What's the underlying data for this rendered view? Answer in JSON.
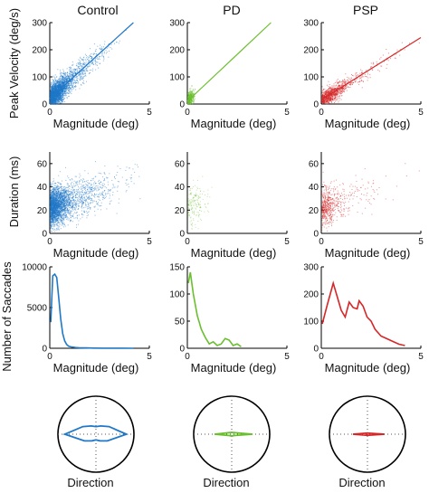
{
  "chart_data": {
    "type": "figure-grid",
    "columns": [
      {
        "title": "Control",
        "color": "#1f78c8"
      },
      {
        "title": "PD",
        "color": "#6abf2e"
      },
      {
        "title": "PSP",
        "color": "#d62728"
      }
    ],
    "rows": [
      {
        "id": "velocity",
        "type": "scatter",
        "ylabel": "Peak Velocity (deg/s)",
        "xlabel": "Magnitude (deg)",
        "xlim": [
          0,
          5
        ],
        "ylim": [
          0,
          300
        ],
        "x_ticks": [
          "0",
          "5"
        ],
        "y_ticks": [
          "0",
          "100",
          "200",
          "300"
        ],
        "x_tick_values": [
          0,
          5
        ],
        "y_tick_values": [
          0,
          100,
          200,
          300
        ],
        "fit_lines": [
          {
            "x": [
              0,
              4.2
            ],
            "y": [
              20,
              300
            ]
          },
          {
            "x": [
              0,
              4.2
            ],
            "y": [
              10,
              300
            ]
          },
          {
            "x": [
              0,
              5
            ],
            "y": [
              15,
              245
            ]
          }
        ]
      },
      {
        "id": "duration",
        "type": "scatter",
        "ylabel": "Duration (ms)",
        "xlabel": "Magnitude (deg)",
        "xlim": [
          0,
          5
        ],
        "ylim": [
          0,
          70
        ],
        "x_ticks": [
          "0",
          "5"
        ],
        "y_ticks": [
          "0",
          "20",
          "40",
          "60"
        ],
        "x_tick_values": [
          0,
          5
        ],
        "y_tick_values": [
          0,
          20,
          40,
          60
        ]
      },
      {
        "id": "count",
        "type": "line",
        "ylabel": "Number of Saccades",
        "xlabel": "Magnitude (deg)",
        "xlim": [
          0,
          5
        ],
        "x_ticks": [
          "0",
          "5"
        ],
        "x_tick_values": [
          0,
          5
        ],
        "panels": [
          {
            "ylim": [
              0,
              10000
            ],
            "y_ticks": [
              "0",
              "5000",
              "10000"
            ],
            "y_tick_values": [
              0,
              5000,
              10000
            ],
            "x": [
              0.05,
              0.15,
              0.25,
              0.35,
              0.45,
              0.55,
              0.65,
              0.75,
              0.85,
              0.95,
              1.1,
              1.3,
              1.5,
              1.8,
              2.2,
              2.7,
              3.2,
              3.7,
              4.2
            ],
            "y": [
              3200,
              8900,
              9100,
              8700,
              6200,
              3600,
              1800,
              900,
              450,
              250,
              150,
              90,
              60,
              40,
              25,
              15,
              10,
              8,
              5
            ]
          },
          {
            "ylim": [
              0,
              150
            ],
            "y_ticks": [
              "0",
              "50",
              "100",
              "150"
            ],
            "y_tick_values": [
              0,
              50,
              100,
              150
            ],
            "x": [
              0.05,
              0.15,
              0.3,
              0.5,
              0.7,
              0.9,
              1.1,
              1.3,
              1.5,
              1.7,
              1.9,
              2.1,
              2.3,
              2.5,
              2.7
            ],
            "y": [
              120,
              140,
              100,
              60,
              35,
              20,
              8,
              12,
              5,
              8,
              18,
              15,
              5,
              8,
              3
            ]
          },
          {
            "ylim": [
              0,
              300
            ],
            "y_ticks": [
              "0",
              "100",
              "200",
              "300"
            ],
            "y_tick_values": [
              0,
              100,
              200,
              300
            ],
            "x": [
              0.05,
              0.3,
              0.6,
              0.8,
              1.0,
              1.2,
              1.4,
              1.6,
              1.8,
              1.9,
              2.1,
              2.3,
              2.5,
              2.7,
              3.0,
              3.3,
              3.6,
              3.9,
              4.2
            ],
            "y": [
              90,
              160,
              240,
              190,
              140,
              115,
              170,
              150,
              145,
              175,
              155,
              115,
              100,
              70,
              45,
              35,
              25,
              15,
              10
            ]
          }
        ]
      },
      {
        "id": "direction",
        "type": "polar",
        "xlabel": "Direction",
        "panels": [
          {
            "angles_deg": [
              0,
              30,
              60,
              90,
              120,
              150,
              180,
              210,
              240,
              270,
              300,
              330
            ],
            "r": [
              0.8,
              0.4,
              0.25,
              0.2,
              0.25,
              0.4,
              0.82,
              0.35,
              0.2,
              0.15,
              0.2,
              0.35
            ]
          },
          {
            "angles_deg": [
              0,
              30,
              60,
              90,
              120,
              150,
              180,
              210,
              240,
              270,
              300,
              330
            ],
            "r": [
              0.55,
              0.08,
              0.05,
              0.05,
              0.05,
              0.08,
              0.45,
              0.07,
              0.05,
              0.04,
              0.05,
              0.07
            ]
          },
          {
            "angles_deg": [
              0,
              30,
              60,
              90,
              120,
              150,
              180,
              210,
              240,
              270,
              300,
              330
            ],
            "r": [
              0.45,
              0.05,
              0.03,
              0.03,
              0.03,
              0.05,
              0.38,
              0.05,
              0.03,
              0.02,
              0.03,
              0.05
            ]
          }
        ]
      }
    ]
  }
}
